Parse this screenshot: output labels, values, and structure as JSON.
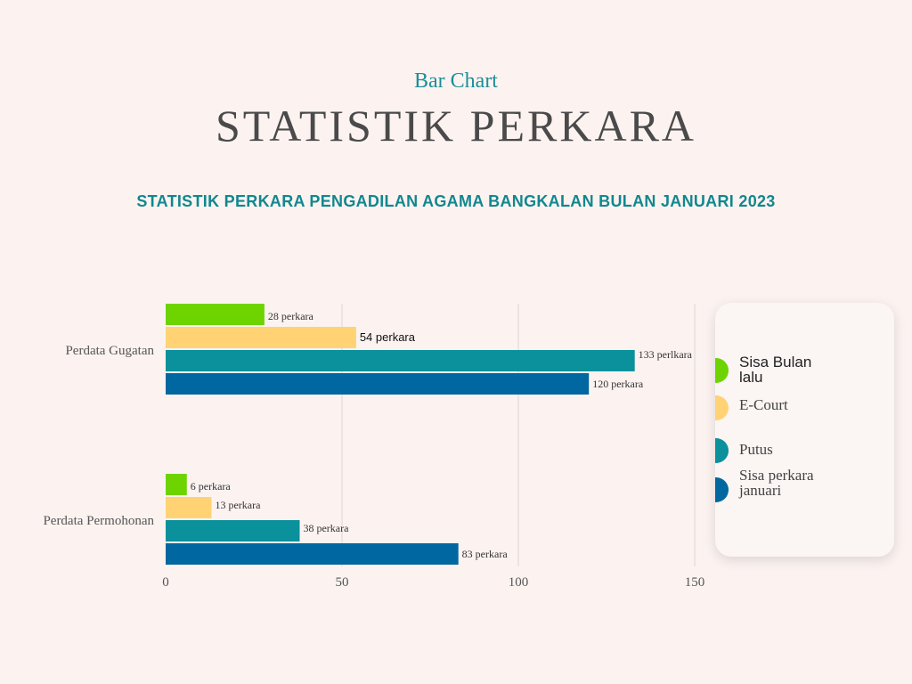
{
  "header": {
    "kicker": "Bar Chart",
    "title": "STATISTIK PERKARA",
    "subtitle": "STATISTIK PERKARA PENGADILAN AGAMA BANGKALAN BULAN JANUARI 2023"
  },
  "colors": {
    "green": "#6dd400",
    "yellow": "#ffd274",
    "teal": "#0a919b",
    "blue": "#0067a0"
  },
  "chart_data": {
    "type": "bar",
    "orientation": "horizontal",
    "title": "STATISTIK PERKARA PENGADILAN AGAMA BANGKALAN BULAN JANUARI 2023",
    "xlabel": "",
    "ylabel": "",
    "xlim": [
      0,
      150
    ],
    "xticks": [
      0,
      50,
      100,
      150
    ],
    "grid": true,
    "legend_position": "right",
    "categories": [
      "Perdata Gugatan",
      "Perdata Permohonan"
    ],
    "series": [
      {
        "name": "Sisa Bulan lalu",
        "color": "#6dd400",
        "values": [
          28,
          6
        ],
        "labels": [
          "28 perkara",
          "6 perkara"
        ]
      },
      {
        "name": "E-Court",
        "color": "#ffd274",
        "values": [
          54,
          13
        ],
        "labels": [
          "54 perkara",
          "13 perkara"
        ]
      },
      {
        "name": "Putus",
        "color": "#0a919b",
        "values": [
          133,
          38
        ],
        "labels": [
          "133  perlkara",
          "38 perkara"
        ]
      },
      {
        "name": "Sisa perkara januari",
        "color": "#0067a0",
        "values": [
          120,
          83
        ],
        "labels": [
          "120 perkara",
          "83 perkara"
        ]
      }
    ]
  },
  "legend": {
    "items": [
      {
        "line1": "Sisa Bulan",
        "line2": "lalu",
        "color": "#6dd400"
      },
      {
        "line1": "E-Court",
        "line2": "",
        "color": "#ffd274"
      },
      {
        "line1": "Putus",
        "line2": "",
        "color": "#0a919b"
      },
      {
        "line1": "Sisa perkara",
        "line2": "januari",
        "color": "#0067a0"
      }
    ]
  }
}
